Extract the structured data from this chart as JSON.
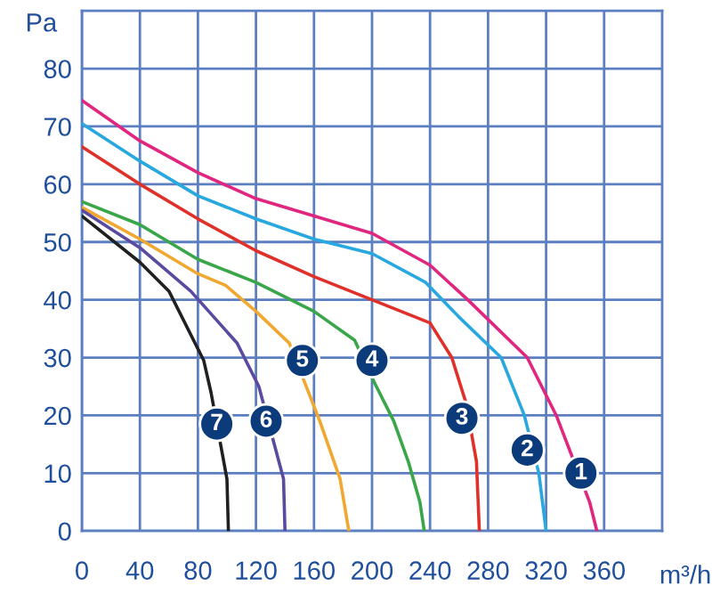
{
  "chart_data": {
    "type": "line",
    "xlabel": "m³/h",
    "ylabel": "Pa",
    "xlim": [
      0,
      400
    ],
    "ylim": [
      0,
      90
    ],
    "xticks": [
      0,
      40,
      80,
      120,
      160,
      200,
      240,
      280,
      320,
      360
    ],
    "yticks": [
      0,
      10,
      20,
      30,
      40,
      50,
      60,
      70,
      80
    ],
    "grid": true,
    "marker": "none",
    "line_style": "solid",
    "series": [
      {
        "color": "#e0267e",
        "x": [
          0,
          40,
          80,
          120,
          160,
          200,
          240,
          266,
          307,
          327,
          350,
          355
        ],
        "values": [
          74.5,
          67.5,
          62,
          57.5,
          54.5,
          51.5,
          46,
          40,
          30,
          20,
          5,
          0
        ]
      },
      {
        "color": "#29a8e0",
        "x": [
          0,
          40,
          80,
          120,
          160,
          200,
          237,
          260,
          289,
          305,
          315,
          320
        ],
        "values": [
          70.5,
          64,
          58,
          54,
          50.5,
          48,
          43,
          37,
          30,
          20,
          10,
          0
        ]
      },
      {
        "color": "#e0302a",
        "x": [
          0,
          40,
          80,
          120,
          160,
          200,
          240,
          255,
          265,
          272,
          274
        ],
        "values": [
          66.5,
          60,
          54,
          48.5,
          44,
          40,
          36,
          30,
          22,
          12,
          0
        ]
      },
      {
        "color": "#3aa64a",
        "x": [
          0,
          40,
          80,
          120,
          160,
          188,
          201,
          215,
          225,
          233,
          236
        ],
        "values": [
          57,
          53,
          47,
          43,
          38,
          33,
          26,
          19,
          12,
          5,
          0
        ]
      },
      {
        "color": "#f0a830",
        "x": [
          0,
          40,
          80,
          99,
          120,
          143,
          164,
          178,
          184
        ],
        "values": [
          56,
          50.5,
          44.5,
          42.5,
          38,
          32.5,
          19,
          9,
          0
        ]
      },
      {
        "color": "#5a4aa0",
        "x": [
          0,
          40,
          75,
          107,
          122,
          139,
          140
        ],
        "values": [
          55.5,
          49,
          41.5,
          32.5,
          25,
          9,
          0
        ]
      },
      {
        "color": "#202020",
        "x": [
          0,
          40,
          60,
          84,
          89,
          100,
          101
        ],
        "values": [
          54.5,
          46.5,
          41.5,
          29.5,
          24,
          9,
          0
        ]
      }
    ],
    "annotations": [
      {
        "text": "1",
        "x": 344,
        "y": 10
      },
      {
        "text": "2",
        "x": 307,
        "y": 14
      },
      {
        "text": "3",
        "x": 262,
        "y": 19.5
      },
      {
        "text": "4",
        "x": 200,
        "y": 29.5
      },
      {
        "text": "5",
        "x": 152,
        "y": 29.5
      },
      {
        "text": "6",
        "x": 127,
        "y": 19
      },
      {
        "text": "7",
        "x": 93,
        "y": 18.5
      }
    ]
  }
}
